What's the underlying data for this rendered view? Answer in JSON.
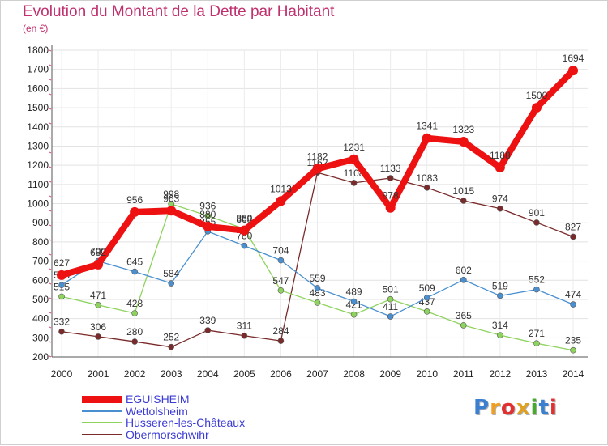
{
  "title": "Evolution du Montant de la Dette par Habitant",
  "unit": "(en €)",
  "brand": {
    "text": "Proxiti",
    "letter_colors": [
      "#3a7fd0",
      "#f0a020",
      "#e03030",
      "#e0a020",
      "#4aa830",
      "#3a7fd0",
      "#e03030"
    ]
  },
  "chart_data": {
    "type": "line",
    "title": "Evolution du Montant de la Dette par Habitant",
    "ylabel": "(en €)",
    "ylim": [
      200,
      1800
    ],
    "yticks": [
      "200",
      "300",
      "400",
      "500",
      "600",
      "700",
      "800",
      "900",
      "1000",
      "1100",
      "1200",
      "1300",
      "1400",
      "1500",
      "1600",
      "1700",
      "1800"
    ],
    "x": [
      "2000",
      "2001",
      "2002",
      "2003",
      "2004",
      "2005",
      "2006",
      "2007",
      "2008",
      "2009",
      "2010",
      "2011",
      "2012",
      "2013",
      "2014"
    ],
    "grid": true,
    "legend_position": "bottom-left",
    "series": [
      {
        "name": "Obermorschwihr",
        "color": "#7a2a2a",
        "values": [
          332,
          306,
          280,
          252,
          339,
          311,
          284,
          1162,
          1108,
          1133,
          1083,
          1015,
          974,
          901,
          827
        ],
        "labels": [
          "332",
          "306",
          "280",
          "252",
          "339",
          "311",
          "284",
          "1162",
          "1108",
          "1133",
          "1083",
          "1015",
          "974",
          "901",
          "827"
        ]
      },
      {
        "name": "Husseren-les-Châteaux",
        "color": "#8fd35f",
        "values": [
          515,
          471,
          428,
          998,
          936,
          868,
          547,
          483,
          421,
          501,
          437,
          365,
          314,
          271,
          235
        ],
        "labels": [
          "515",
          "471",
          "428",
          "998",
          "936",
          "868",
          "547",
          "483",
          "421",
          "501",
          "437",
          "365",
          "314",
          "271",
          "235"
        ]
      },
      {
        "name": "Wettolsheim",
        "color": "#4a90d0",
        "values": [
          575,
          700,
          645,
          584,
          855,
          780,
          704,
          559,
          489,
          411,
          509,
          602,
          519,
          552,
          474
        ],
        "labels": [
          "575",
          "700",
          "645",
          "584",
          "855",
          "780",
          "704",
          "559",
          "489",
          "411",
          "509",
          "602",
          "519",
          "552",
          "474"
        ]
      },
      {
        "name": "EGUISHEIM",
        "color": "#ee1111",
        "values": [
          627,
          682,
          956,
          963,
          880,
          860,
          1013,
          1182,
          1231,
          978,
          1341,
          1323,
          1188,
          1500,
          1694
        ],
        "labels": [
          "627",
          "682",
          "956",
          "963",
          "880",
          "860",
          "1013",
          "1182",
          "1231",
          "978",
          "1341",
          "1323",
          "1188",
          "1500",
          "1694"
        ]
      }
    ]
  },
  "legend": [
    {
      "label": "EGUISHEIM",
      "color": "#ee1111",
      "thick": true
    },
    {
      "label": "Wettolsheim",
      "color": "#4a90d0",
      "thick": false
    },
    {
      "label": "Husseren-les-Châteaux",
      "color": "#8fd35f",
      "thick": false
    },
    {
      "label": "Obermorschwihr",
      "color": "#7a2a2a",
      "thick": false
    }
  ]
}
